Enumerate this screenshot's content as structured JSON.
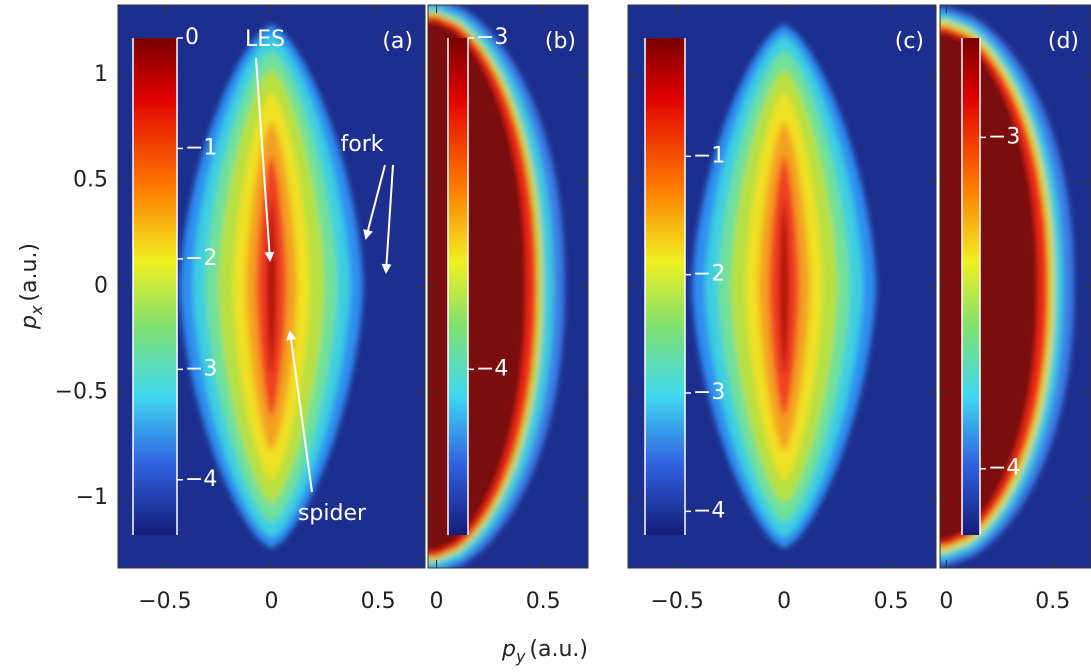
{
  "chart_data": [
    {
      "type": "heatmap",
      "panel_label": "(a)",
      "colormap": "jet",
      "xlim": [
        -0.72,
        0.72
      ],
      "xticks": [
        {
          "value": -0.5,
          "label": "−0.5"
        },
        0,
        0.5
      ],
      "ylim": [
        -1.33,
        1.33
      ],
      "yticks": [
        1,
        0.5,
        0,
        {
          "value": -0.5,
          "label": "−0.5"
        },
        {
          "value": -1,
          "label": "−1"
        }
      ],
      "xlabel": {
        "symbol": "p",
        "subscript": "y",
        "unit": "(a.u.)"
      },
      "ylabel": {
        "symbol": "p",
        "subscript": "x",
        "unit": "(a.u.)"
      },
      "colorbar": {
        "clim": [
          -4.5,
          0
        ],
        "ticks": [
          0,
          {
            "value": -1,
            "label": "−1"
          },
          {
            "value": -2,
            "label": "−2"
          },
          {
            "value": -3,
            "label": "−3"
          },
          {
            "value": -4,
            "label": "−4"
          }
        ]
      },
      "annotations": [
        "LES",
        "fork",
        "spider"
      ]
    },
    {
      "type": "heatmap",
      "panel_label": "(b)",
      "colormap": "jet",
      "xlim": [
        -0.04,
        0.71
      ],
      "xticks": [
        0,
        0.5
      ],
      "ylim": [
        -1.33,
        1.33
      ],
      "colorbar": {
        "clim": [
          -4.5,
          -3
        ],
        "ticks": [
          {
            "value": -3,
            "label": "−3"
          },
          {
            "value": -4,
            "label": "−4"
          }
        ]
      }
    },
    {
      "type": "heatmap",
      "panel_label": "(c)",
      "colormap": "jet",
      "xlim": [
        -0.73,
        0.71
      ],
      "xticks": [
        {
          "value": -0.5,
          "label": "−0.5"
        },
        0,
        0.5
      ],
      "ylim": [
        -1.33,
        1.33
      ],
      "colorbar": {
        "clim": [
          -4.2,
          0
        ],
        "ticks": [
          {
            "value": -1,
            "label": "−1"
          },
          {
            "value": -2,
            "label": "−2"
          },
          {
            "value": -3,
            "label": "−3"
          },
          {
            "value": -4,
            "label": "−4"
          }
        ]
      }
    },
    {
      "type": "heatmap",
      "panel_label": "(d)",
      "colormap": "jet",
      "xlim": [
        -0.03,
        0.68
      ],
      "xticks": [
        0,
        0.5
      ],
      "ylim": [
        -1.33,
        1.33
      ],
      "colorbar": {
        "clim": [
          -4.2,
          -2.7
        ],
        "ticks": [
          {
            "value": -3,
            "label": "−3"
          },
          {
            "value": -4,
            "label": "−4"
          }
        ]
      }
    }
  ]
}
